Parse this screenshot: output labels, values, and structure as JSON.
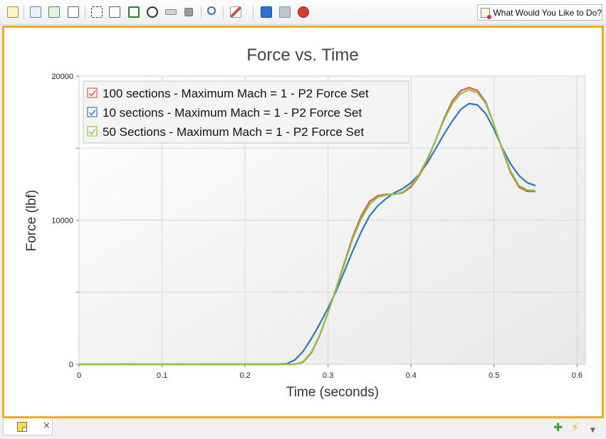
{
  "toolbar": {
    "buttons": [
      "edit-icon",
      "copy-icon",
      "refresh-icon",
      "table-icon",
      "text-title-icon",
      "legend-icon",
      "checkbox-icon",
      "crosshair-icon",
      "range-icon",
      "stop-icon",
      "zoom-icon",
      "pen-icon",
      "add-icon",
      "tools-icon",
      "warning-icon"
    ],
    "ask_label": "What Would You Like to Do?"
  },
  "bottom_bar": {
    "tab_close": "×",
    "add_glyph": "✚",
    "lightning_glyph": "⚡",
    "dropdown_glyph": "▼"
  },
  "chart_data": {
    "type": "line",
    "title": "Force vs. Time",
    "xlabel": "Time (seconds)",
    "ylabel": "Force (lbf)",
    "xlim": [
      0,
      0.61
    ],
    "ylim": [
      0,
      20000
    ],
    "x_ticks": [
      0,
      0.1,
      0.2,
      0.3,
      0.4,
      0.5,
      0.6
    ],
    "x_tick_labels": [
      "0",
      "0.1",
      "0.2",
      "0.3",
      "0.4",
      "0.5",
      "0.6"
    ],
    "y_ticks": [
      0,
      10000,
      20000
    ],
    "y_tick_labels": [
      "0",
      "10000",
      "20000"
    ],
    "grid": true,
    "legend_position": "top-left",
    "series": [
      {
        "name": "100 sections - Maximum Mach = 1 - P2 Force Set",
        "color": "#e05a47",
        "x": [
          0,
          0.1,
          0.2,
          0.24,
          0.26,
          0.27,
          0.28,
          0.29,
          0.3,
          0.31,
          0.32,
          0.33,
          0.34,
          0.35,
          0.36,
          0.37,
          0.38,
          0.39,
          0.4,
          0.41,
          0.42,
          0.43,
          0.44,
          0.45,
          0.46,
          0.47,
          0.48,
          0.49,
          0.5,
          0.51,
          0.52,
          0.53,
          0.54,
          0.55
        ],
        "y": [
          0,
          0,
          0,
          0,
          0,
          150,
          800,
          2000,
          3600,
          5300,
          7100,
          8900,
          10300,
          11300,
          11700,
          11800,
          11800,
          11900,
          12300,
          13100,
          14200,
          15600,
          17100,
          18300,
          19000,
          19200,
          19000,
          18200,
          16600,
          14900,
          13300,
          12300,
          12000,
          12000
        ]
      },
      {
        "name": "10 sections - Maximum Mach = 1 - P2 Force Set",
        "color": "#2b7bb9",
        "x": [
          0,
          0.1,
          0.2,
          0.24,
          0.25,
          0.26,
          0.27,
          0.28,
          0.29,
          0.3,
          0.31,
          0.32,
          0.33,
          0.34,
          0.35,
          0.36,
          0.37,
          0.38,
          0.39,
          0.4,
          0.41,
          0.42,
          0.43,
          0.44,
          0.45,
          0.46,
          0.47,
          0.48,
          0.49,
          0.5,
          0.51,
          0.52,
          0.53,
          0.54,
          0.55
        ],
        "y": [
          0,
          0,
          0,
          0,
          40,
          300,
          900,
          1800,
          2800,
          3900,
          5100,
          6500,
          7900,
          9200,
          10300,
          11000,
          11500,
          11900,
          12200,
          12600,
          13200,
          14000,
          15000,
          16000,
          16900,
          17700,
          18100,
          18000,
          17400,
          16300,
          15000,
          13900,
          13100,
          12600,
          12400
        ]
      },
      {
        "name": "50 Sections - Maximum Mach = 1 - P2 Force Set",
        "color": "#8cc63f",
        "x": [
          0,
          0.1,
          0.2,
          0.24,
          0.26,
          0.27,
          0.28,
          0.29,
          0.3,
          0.31,
          0.32,
          0.33,
          0.34,
          0.35,
          0.36,
          0.37,
          0.38,
          0.39,
          0.4,
          0.41,
          0.42,
          0.43,
          0.44,
          0.45,
          0.46,
          0.47,
          0.48,
          0.49,
          0.5,
          0.51,
          0.52,
          0.53,
          0.54,
          0.55
        ],
        "y": [
          0,
          0,
          0,
          0,
          0,
          180,
          850,
          2050,
          3600,
          5250,
          7000,
          8750,
          10100,
          11100,
          11600,
          11750,
          11800,
          11950,
          12400,
          13200,
          14300,
          15600,
          17000,
          18100,
          18800,
          19050,
          18850,
          18100,
          16600,
          14950,
          13400,
          12400,
          12100,
          12050
        ]
      }
    ]
  }
}
